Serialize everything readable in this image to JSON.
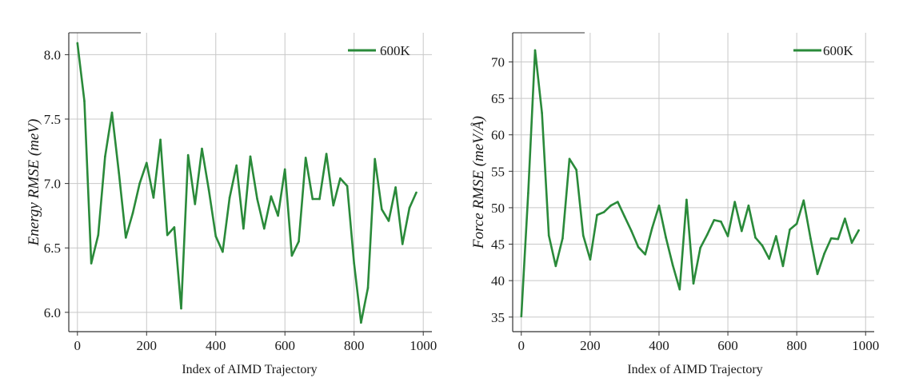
{
  "chart_data": [
    {
      "type": "line",
      "xlabel": "Index of AIMD Trajectory",
      "ylabel": "Energy RMSE (meV)",
      "xlim": [
        -25,
        1025
      ],
      "ylim": [
        5.85,
        8.17
      ],
      "xticks": [
        0,
        200,
        400,
        600,
        800,
        1000
      ],
      "xtick_labels": [
        "0",
        "200",
        "400",
        "600",
        "800",
        "1000"
      ],
      "yticks": [
        6.0,
        6.5,
        7.0,
        7.5,
        8.0
      ],
      "ytick_labels": [
        "6.0",
        "6.5",
        "7.0",
        "7.5",
        "8.0"
      ],
      "grid": true,
      "legend_position": "top-right",
      "series": [
        {
          "name": "600K",
          "color": "#2a8a3a",
          "x": [
            0,
            20,
            40,
            60,
            80,
            100,
            120,
            140,
            160,
            180,
            200,
            220,
            240,
            260,
            280,
            300,
            320,
            340,
            360,
            380,
            400,
            420,
            440,
            460,
            480,
            500,
            520,
            540,
            560,
            580,
            600,
            620,
            640,
            660,
            680,
            700,
            720,
            740,
            760,
            780,
            800,
            820,
            840,
            860,
            880,
            900,
            920,
            940,
            960,
            980
          ],
          "y": [
            8.09,
            7.64,
            6.38,
            6.6,
            7.21,
            7.55,
            7.08,
            6.58,
            6.77,
            7.0,
            7.16,
            6.89,
            7.34,
            6.6,
            6.66,
            6.03,
            7.22,
            6.84,
            7.27,
            6.95,
            6.59,
            6.47,
            6.89,
            7.14,
            6.65,
            7.21,
            6.88,
            6.65,
            6.9,
            6.75,
            7.11,
            6.44,
            6.55,
            7.2,
            6.88,
            6.88,
            7.23,
            6.83,
            7.04,
            6.98,
            6.38,
            5.92,
            6.19,
            7.19,
            6.8,
            6.71,
            6.97,
            6.53,
            6.81,
            6.93
          ]
        }
      ]
    },
    {
      "type": "line",
      "xlabel": "Index of AIMD Trajectory",
      "ylabel": "Force RMSE (meV/Å)",
      "xlim": [
        -25,
        1025
      ],
      "ylim": [
        33.0,
        74.0
      ],
      "xticks": [
        0,
        200,
        400,
        600,
        800,
        1000
      ],
      "xtick_labels": [
        "0",
        "200",
        "400",
        "600",
        "800",
        "1000"
      ],
      "yticks": [
        35,
        40,
        45,
        50,
        55,
        60,
        65,
        70
      ],
      "ytick_labels": [
        "35",
        "40",
        "45",
        "50",
        "55",
        "60",
        "65",
        "70"
      ],
      "grid": true,
      "legend_position": "top-right",
      "series": [
        {
          "name": "600K",
          "color": "#2a8a3a",
          "x": [
            0,
            20,
            40,
            60,
            80,
            100,
            120,
            140,
            160,
            180,
            200,
            220,
            240,
            260,
            280,
            300,
            320,
            340,
            360,
            380,
            400,
            420,
            440,
            460,
            480,
            500,
            520,
            540,
            560,
            580,
            600,
            620,
            640,
            660,
            680,
            700,
            720,
            740,
            760,
            780,
            800,
            820,
            840,
            860,
            880,
            900,
            920,
            940,
            960,
            980
          ],
          "y": [
            35.1,
            52.0,
            71.6,
            63.0,
            46.2,
            42.0,
            45.8,
            56.7,
            55.2,
            46.2,
            42.9,
            49.0,
            49.4,
            50.3,
            50.8,
            48.8,
            46.8,
            44.6,
            43.6,
            47.2,
            50.3,
            45.9,
            42.1,
            38.8,
            51.1,
            39.6,
            44.5,
            46.3,
            48.3,
            48.1,
            46.1,
            50.8,
            46.8,
            50.3,
            45.9,
            44.8,
            43.0,
            46.1,
            42.0,
            47.0,
            47.8,
            51.0,
            45.8,
            40.9,
            43.7,
            45.8,
            45.7,
            48.5,
            45.2,
            46.9
          ]
        }
      ]
    }
  ]
}
